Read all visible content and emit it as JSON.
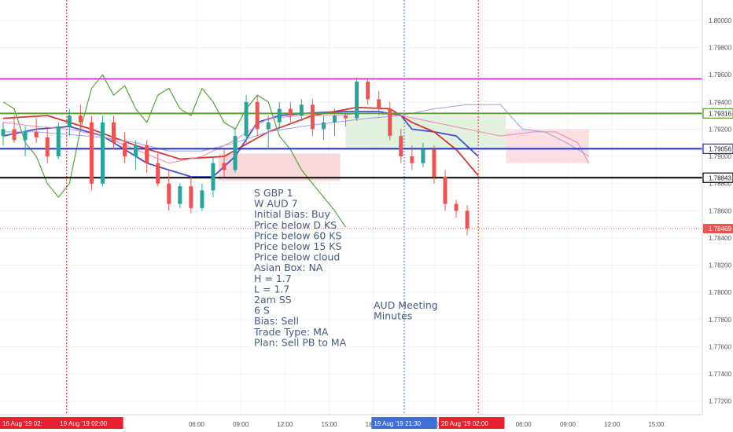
{
  "chart_data": {
    "type": "candlestick",
    "symbol_context": "GBPAUD intraday",
    "ylim": [
      1.771,
      1.8015
    ],
    "y_ticks": [
      "1.80000",
      "1.79800",
      "1.79600",
      "1.79400",
      "1.79200",
      "1.79000",
      "1.78800",
      "1.78600",
      "1.78400",
      "1.78200",
      "1.78000",
      "1.77800",
      "1.77600",
      "1.77400",
      "1.77200"
    ],
    "x_ticks": [
      {
        "t": 17.5,
        "label": "06:00"
      },
      {
        "t": 21.5,
        "label": "09:00"
      },
      {
        "t": 25.5,
        "label": "12:00"
      },
      {
        "t": 29.5,
        "label": "15:00"
      },
      {
        "t": 33.5,
        "label": "18:00"
      },
      {
        "t": 39.1,
        "label": "20"
      },
      {
        "t": 47.1,
        "label": "06:00"
      },
      {
        "t": 51.1,
        "label": "09:00"
      },
      {
        "t": 55.1,
        "label": "12:00"
      },
      {
        "t": 59.1,
        "label": "15:00"
      }
    ],
    "x_badges": [
      {
        "t": 1.6,
        "label": "16 Aug '19   02:",
        "color": "#e8202e"
      },
      {
        "t": 7.9,
        "label": "19 Aug '19   02:00",
        "color": "#e8202e"
      },
      {
        "t": 36.3,
        "label": "19 Aug '19   21:30",
        "color": "#3d6fd6"
      },
      {
        "t": 42.4,
        "label": "20 Aug '19   02:00",
        "color": "#e8202e"
      }
    ],
    "vlines": [
      {
        "t": 5.75,
        "color": "#e8202e"
      },
      {
        "t": 36.3,
        "color": "#3d6fd6"
      },
      {
        "t": 43.0,
        "color": "#e8202e"
      }
    ],
    "hlines": [
      {
        "y": 1.7957,
        "color": "#e040e0",
        "label": ""
      },
      {
        "y": 1.79316,
        "color": "#5aa02c",
        "label": "1.79316"
      },
      {
        "y": 1.79056,
        "color": "#1f2fd6",
        "label": "1.79056"
      },
      {
        "y": 1.78843,
        "color": "#000000",
        "label": "1.78843"
      }
    ],
    "last_price": {
      "y": 1.78469,
      "label": "1.78469",
      "color": "#ef5350"
    },
    "candles": [
      [
        1.7915,
        1.7925,
        1.7908,
        1.792
      ],
      [
        1.792,
        1.793,
        1.791,
        1.7912
      ],
      [
        1.7912,
        1.7922,
        1.79,
        1.7918
      ],
      [
        1.7918,
        1.7928,
        1.791,
        1.7914
      ],
      [
        1.7914,
        1.792,
        1.7895,
        1.79
      ],
      [
        1.79,
        1.7925,
        1.7898,
        1.7922
      ],
      [
        1.7922,
        1.7935,
        1.7915,
        1.793
      ],
      [
        1.793,
        1.7938,
        1.792,
        1.7925
      ],
      [
        1.7925,
        1.793,
        1.7875,
        1.788
      ],
      [
        1.788,
        1.793,
        1.7878,
        1.7925
      ],
      [
        1.7925,
        1.793,
        1.7905,
        1.791
      ],
      [
        1.791,
        1.7918,
        1.7895,
        1.79
      ],
      [
        1.79,
        1.7912,
        1.789,
        1.7908
      ],
      [
        1.7908,
        1.7912,
        1.7888,
        1.7895
      ],
      [
        1.7895,
        1.7902,
        1.7878,
        1.788
      ],
      [
        1.788,
        1.789,
        1.786,
        1.7865
      ],
      [
        1.7865,
        1.788,
        1.7862,
        1.7878
      ],
      [
        1.7878,
        1.7885,
        1.7858,
        1.7862
      ],
      [
        1.7862,
        1.788,
        1.786,
        1.7875
      ],
      [
        1.7875,
        1.79,
        1.787,
        1.7895
      ],
      [
        1.7895,
        1.7905,
        1.7885,
        1.789
      ],
      [
        1.789,
        1.792,
        1.7888,
        1.7915
      ],
      [
        1.7915,
        1.7945,
        1.791,
        1.794
      ],
      [
        1.794,
        1.7945,
        1.7915,
        1.792
      ],
      [
        1.792,
        1.793,
        1.7905,
        1.7925
      ],
      [
        1.7925,
        1.794,
        1.792,
        1.7935
      ],
      [
        1.7935,
        1.794,
        1.7925,
        1.793
      ],
      [
        1.793,
        1.7942,
        1.7926,
        1.7938
      ],
      [
        1.7938,
        1.7942,
        1.7915,
        1.792
      ],
      [
        1.792,
        1.793,
        1.7912,
        1.7925
      ],
      [
        1.7925,
        1.7935,
        1.7915,
        1.793
      ],
      [
        1.793,
        1.7935,
        1.7922,
        1.7928
      ],
      [
        1.7928,
        1.7958,
        1.7926,
        1.7955
      ],
      [
        1.7955,
        1.7957,
        1.7938,
        1.7942
      ],
      [
        1.7942,
        1.7948,
        1.793,
        1.7935
      ],
      [
        1.7935,
        1.794,
        1.7912,
        1.7915
      ],
      [
        1.7915,
        1.792,
        1.7895,
        1.79
      ],
      [
        1.79,
        1.7908,
        1.789,
        1.7895
      ],
      [
        1.7895,
        1.791,
        1.7892,
        1.7905
      ],
      [
        1.7905,
        1.7908,
        1.788,
        1.7885
      ],
      [
        1.7885,
        1.789,
        1.786,
        1.7865
      ],
      [
        1.7865,
        1.7868,
        1.7855,
        1.786
      ],
      [
        1.786,
        1.7864,
        1.7842,
        1.7847
      ]
    ],
    "series": [
      {
        "name": "",
        "color": "#3f51d8",
        "width": 1.8,
        "points": [
          [
            0,
            1.7915
          ],
          [
            3,
            1.792
          ],
          [
            6,
            1.7922
          ],
          [
            9,
            1.7915
          ],
          [
            11,
            1.7905
          ],
          [
            13,
            1.7895
          ],
          [
            15,
            1.789
          ],
          [
            17,
            1.7885
          ],
          [
            19,
            1.7885
          ],
          [
            21,
            1.79
          ],
          [
            23,
            1.7925
          ],
          [
            25,
            1.793
          ],
          [
            28,
            1.7932
          ],
          [
            31,
            1.7933
          ],
          [
            34,
            1.7933
          ],
          [
            36,
            1.793
          ],
          [
            37,
            1.792
          ],
          [
            39,
            1.7918
          ],
          [
            41,
            1.7915
          ],
          [
            43,
            1.79
          ]
        ]
      },
      {
        "name": "",
        "color": "#e03030",
        "width": 1.8,
        "points": [
          [
            0,
            1.7928
          ],
          [
            4,
            1.793
          ],
          [
            8,
            1.792
          ],
          [
            12,
            1.7908
          ],
          [
            16,
            1.7898
          ],
          [
            20,
            1.79
          ],
          [
            24,
            1.7918
          ],
          [
            28,
            1.793
          ],
          [
            32,
            1.7936
          ],
          [
            35,
            1.7935
          ],
          [
            37,
            1.7925
          ],
          [
            39,
            1.7918
          ],
          [
            41,
            1.7905
          ],
          [
            43,
            1.7886
          ]
        ]
      },
      {
        "name": "",
        "color": "#56a33a",
        "width": 1.2,
        "points": [
          [
            0,
            1.794
          ],
          [
            1,
            1.7935
          ],
          [
            2,
            1.791
          ],
          [
            3,
            1.79
          ],
          [
            4,
            1.788
          ],
          [
            5,
            1.787
          ],
          [
            6,
            1.788
          ],
          [
            7,
            1.792
          ],
          [
            8,
            1.795
          ],
          [
            9,
            1.796
          ],
          [
            10,
            1.7945
          ],
          [
            11,
            1.7952
          ],
          [
            12,
            1.7935
          ],
          [
            13,
            1.7925
          ],
          [
            14,
            1.7945
          ],
          [
            15,
            1.795
          ],
          [
            16,
            1.7935
          ],
          [
            17,
            1.793
          ],
          [
            18,
            1.795
          ],
          [
            19,
            1.794
          ],
          [
            20,
            1.7925
          ],
          [
            21,
            1.792
          ],
          [
            22,
            1.7935
          ],
          [
            23,
            1.7945
          ],
          [
            24,
            1.794
          ],
          [
            25,
            1.7915
          ],
          [
            26,
            1.7905
          ],
          [
            27,
            1.789
          ],
          [
            28,
            1.788
          ],
          [
            29,
            1.787
          ],
          [
            30,
            1.786
          ],
          [
            31,
            1.7848
          ]
        ]
      },
      {
        "name": "",
        "color": "#ef86b8",
        "width": 1,
        "points": [
          [
            0,
            1.7925
          ],
          [
            3,
            1.7922
          ],
          [
            6,
            1.792
          ],
          [
            9,
            1.7915
          ],
          [
            12,
            1.7905
          ],
          [
            15,
            1.7895
          ],
          [
            18,
            1.79
          ],
          [
            21,
            1.7912
          ],
          [
            24,
            1.7928
          ],
          [
            27,
            1.793
          ],
          [
            30,
            1.793
          ],
          [
            33,
            1.7932
          ],
          [
            36,
            1.793
          ],
          [
            39,
            1.7925
          ],
          [
            42,
            1.792
          ],
          [
            45,
            1.7915
          ],
          [
            48,
            1.7918
          ],
          [
            50,
            1.7918
          ],
          [
            52,
            1.791
          ],
          [
            53,
            1.7895
          ]
        ]
      },
      {
        "name": "",
        "color": "#9aa0e8",
        "width": 1,
        "points": [
          [
            0,
            1.7918
          ],
          [
            3,
            1.7918
          ],
          [
            6,
            1.7916
          ],
          [
            9,
            1.7914
          ],
          [
            12,
            1.791
          ],
          [
            15,
            1.7904
          ],
          [
            18,
            1.7904
          ],
          [
            21,
            1.791
          ],
          [
            24,
            1.7918
          ],
          [
            27,
            1.7922
          ],
          [
            30,
            1.7925
          ],
          [
            33,
            1.7928
          ],
          [
            36,
            1.793
          ],
          [
            39,
            1.7935
          ],
          [
            42,
            1.7938
          ],
          [
            45,
            1.7938
          ],
          [
            47,
            1.792
          ],
          [
            49,
            1.7918
          ],
          [
            51,
            1.791
          ],
          [
            53,
            1.79
          ]
        ]
      }
    ],
    "cloud_bands": [
      {
        "from": 19.5,
        "to": 30.5,
        "top": 1.7902,
        "bottom": 1.7882,
        "color": "#f7c7cc"
      },
      {
        "from": 31,
        "to": 45.5,
        "top": 1.793,
        "bottom": 1.7905,
        "color": "#d5ecd0"
      },
      {
        "from": 45.5,
        "to": 53,
        "top": 1.792,
        "bottom": 1.7895,
        "color": "#f9d3d7"
      }
    ]
  },
  "notes": {
    "plan_lines": [
      "S GBP 1",
      "W AUD 7",
      "Initial Bias: Buy",
      "Price below D KS",
      "Price below 60 KS",
      "Price below 15 KS",
      "Price below cloud",
      "Asian Box:  NA",
      "H = 1.7",
      "L = 1.7",
      "2am SS",
      "6 S",
      "Bias: Sell",
      "Trade Type: MA",
      "Plan: Sell PB to MA"
    ],
    "event": [
      "AUD Meeting",
      "Minutes"
    ]
  }
}
